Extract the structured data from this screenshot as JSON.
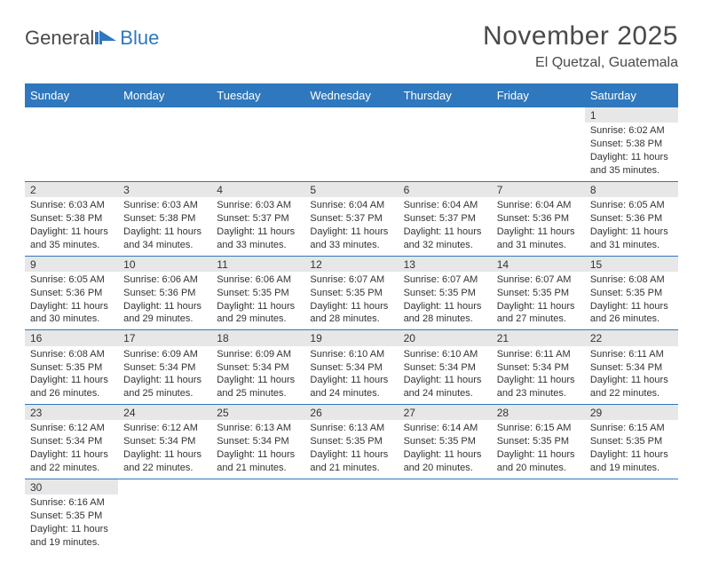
{
  "logo": {
    "text1": "General",
    "text2": "Blue"
  },
  "header": {
    "month_title": "November 2025",
    "location": "El Quetzal, Guatemala"
  },
  "colors": {
    "primary": "#2f78bd",
    "header_text": "#ffffff",
    "daynum_bg": "#e7e7e7",
    "body_text": "#333333",
    "page_bg": "#ffffff",
    "title_color": "#4a4a4a"
  },
  "weekdays": [
    "Sunday",
    "Monday",
    "Tuesday",
    "Wednesday",
    "Thursday",
    "Friday",
    "Saturday"
  ],
  "first_weekday_index": 6,
  "days": [
    {
      "n": 1,
      "sunrise": "6:02 AM",
      "sunset": "5:38 PM",
      "daylight": "11 hours and 35 minutes."
    },
    {
      "n": 2,
      "sunrise": "6:03 AM",
      "sunset": "5:38 PM",
      "daylight": "11 hours and 35 minutes."
    },
    {
      "n": 3,
      "sunrise": "6:03 AM",
      "sunset": "5:38 PM",
      "daylight": "11 hours and 34 minutes."
    },
    {
      "n": 4,
      "sunrise": "6:03 AM",
      "sunset": "5:37 PM",
      "daylight": "11 hours and 33 minutes."
    },
    {
      "n": 5,
      "sunrise": "6:04 AM",
      "sunset": "5:37 PM",
      "daylight": "11 hours and 33 minutes."
    },
    {
      "n": 6,
      "sunrise": "6:04 AM",
      "sunset": "5:37 PM",
      "daylight": "11 hours and 32 minutes."
    },
    {
      "n": 7,
      "sunrise": "6:04 AM",
      "sunset": "5:36 PM",
      "daylight": "11 hours and 31 minutes."
    },
    {
      "n": 8,
      "sunrise": "6:05 AM",
      "sunset": "5:36 PM",
      "daylight": "11 hours and 31 minutes."
    },
    {
      "n": 9,
      "sunrise": "6:05 AM",
      "sunset": "5:36 PM",
      "daylight": "11 hours and 30 minutes."
    },
    {
      "n": 10,
      "sunrise": "6:06 AM",
      "sunset": "5:36 PM",
      "daylight": "11 hours and 29 minutes."
    },
    {
      "n": 11,
      "sunrise": "6:06 AM",
      "sunset": "5:35 PM",
      "daylight": "11 hours and 29 minutes."
    },
    {
      "n": 12,
      "sunrise": "6:07 AM",
      "sunset": "5:35 PM",
      "daylight": "11 hours and 28 minutes."
    },
    {
      "n": 13,
      "sunrise": "6:07 AM",
      "sunset": "5:35 PM",
      "daylight": "11 hours and 28 minutes."
    },
    {
      "n": 14,
      "sunrise": "6:07 AM",
      "sunset": "5:35 PM",
      "daylight": "11 hours and 27 minutes."
    },
    {
      "n": 15,
      "sunrise": "6:08 AM",
      "sunset": "5:35 PM",
      "daylight": "11 hours and 26 minutes."
    },
    {
      "n": 16,
      "sunrise": "6:08 AM",
      "sunset": "5:35 PM",
      "daylight": "11 hours and 26 minutes."
    },
    {
      "n": 17,
      "sunrise": "6:09 AM",
      "sunset": "5:34 PM",
      "daylight": "11 hours and 25 minutes."
    },
    {
      "n": 18,
      "sunrise": "6:09 AM",
      "sunset": "5:34 PM",
      "daylight": "11 hours and 25 minutes."
    },
    {
      "n": 19,
      "sunrise": "6:10 AM",
      "sunset": "5:34 PM",
      "daylight": "11 hours and 24 minutes."
    },
    {
      "n": 20,
      "sunrise": "6:10 AM",
      "sunset": "5:34 PM",
      "daylight": "11 hours and 24 minutes."
    },
    {
      "n": 21,
      "sunrise": "6:11 AM",
      "sunset": "5:34 PM",
      "daylight": "11 hours and 23 minutes."
    },
    {
      "n": 22,
      "sunrise": "6:11 AM",
      "sunset": "5:34 PM",
      "daylight": "11 hours and 22 minutes."
    },
    {
      "n": 23,
      "sunrise": "6:12 AM",
      "sunset": "5:34 PM",
      "daylight": "11 hours and 22 minutes."
    },
    {
      "n": 24,
      "sunrise": "6:12 AM",
      "sunset": "5:34 PM",
      "daylight": "11 hours and 22 minutes."
    },
    {
      "n": 25,
      "sunrise": "6:13 AM",
      "sunset": "5:34 PM",
      "daylight": "11 hours and 21 minutes."
    },
    {
      "n": 26,
      "sunrise": "6:13 AM",
      "sunset": "5:35 PM",
      "daylight": "11 hours and 21 minutes."
    },
    {
      "n": 27,
      "sunrise": "6:14 AM",
      "sunset": "5:35 PM",
      "daylight": "11 hours and 20 minutes."
    },
    {
      "n": 28,
      "sunrise": "6:15 AM",
      "sunset": "5:35 PM",
      "daylight": "11 hours and 20 minutes."
    },
    {
      "n": 29,
      "sunrise": "6:15 AM",
      "sunset": "5:35 PM",
      "daylight": "11 hours and 19 minutes."
    },
    {
      "n": 30,
      "sunrise": "6:16 AM",
      "sunset": "5:35 PM",
      "daylight": "11 hours and 19 minutes."
    }
  ],
  "labels": {
    "sunrise_prefix": "Sunrise: ",
    "sunset_prefix": "Sunset: ",
    "daylight_prefix": "Daylight: "
  }
}
